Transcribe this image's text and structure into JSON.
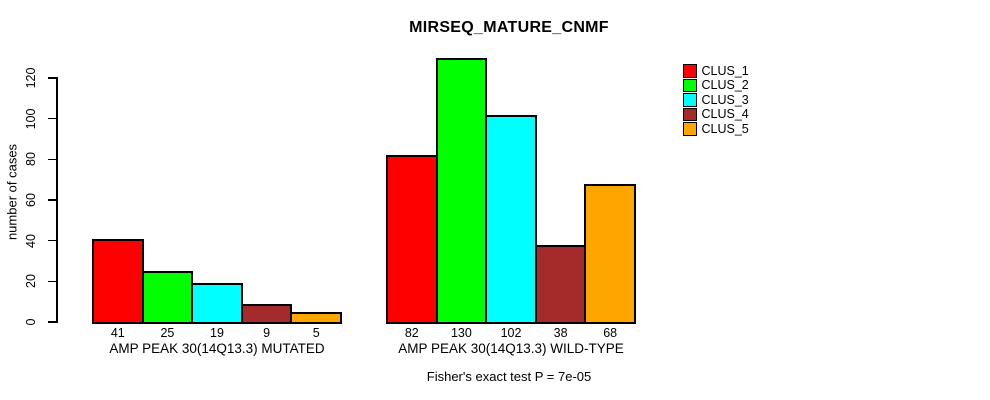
{
  "chart_data": {
    "type": "bar",
    "title": "MIRSEQ_MATURE_CNMF",
    "ylabel": "number of cases",
    "xlabel": "",
    "categories": [
      "AMP PEAK 30(14Q13.3) MUTATED",
      "AMP PEAK 30(14Q13.3) WILD-TYPE"
    ],
    "series": [
      {
        "name": "CLUS_1",
        "color": "#FF0000",
        "values": [
          41,
          82
        ]
      },
      {
        "name": "CLUS_2",
        "color": "#00FF00",
        "values": [
          25,
          130
        ]
      },
      {
        "name": "CLUS_3",
        "color": "#00FFFF",
        "values": [
          19,
          102
        ]
      },
      {
        "name": "CLUS_4",
        "color": "#A52A2A",
        "values": [
          9,
          38
        ]
      },
      {
        "name": "CLUS_5",
        "color": "#FFA500",
        "values": [
          5,
          68
        ]
      }
    ],
    "yticks": [
      0,
      20,
      40,
      60,
      80,
      100,
      120
    ],
    "ylim": [
      0,
      132
    ],
    "grid": false,
    "bar_value_labels": true,
    "legend_position": "right",
    "annotation": "Fisher's exact test P = 7e-05"
  }
}
